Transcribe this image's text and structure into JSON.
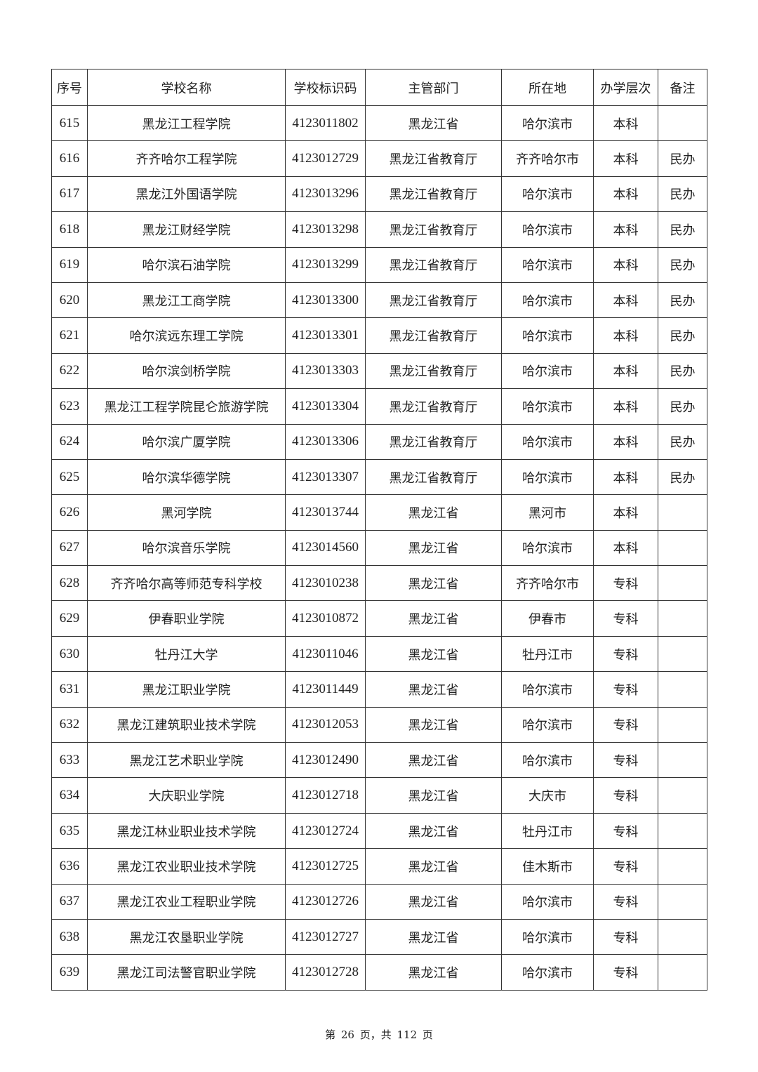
{
  "table": {
    "headers": [
      "序号",
      "学校名称",
      "学校标识码",
      "主管部门",
      "所在地",
      "办学层次",
      "备注"
    ],
    "rows": [
      [
        "615",
        "黑龙江工程学院",
        "4123011802",
        "黑龙江省",
        "哈尔滨市",
        "本科",
        ""
      ],
      [
        "616",
        "齐齐哈尔工程学院",
        "4123012729",
        "黑龙江省教育厅",
        "齐齐哈尔市",
        "本科",
        "民办"
      ],
      [
        "617",
        "黑龙江外国语学院",
        "4123013296",
        "黑龙江省教育厅",
        "哈尔滨市",
        "本科",
        "民办"
      ],
      [
        "618",
        "黑龙江财经学院",
        "4123013298",
        "黑龙江省教育厅",
        "哈尔滨市",
        "本科",
        "民办"
      ],
      [
        "619",
        "哈尔滨石油学院",
        "4123013299",
        "黑龙江省教育厅",
        "哈尔滨市",
        "本科",
        "民办"
      ],
      [
        "620",
        "黑龙江工商学院",
        "4123013300",
        "黑龙江省教育厅",
        "哈尔滨市",
        "本科",
        "民办"
      ],
      [
        "621",
        "哈尔滨远东理工学院",
        "4123013301",
        "黑龙江省教育厅",
        "哈尔滨市",
        "本科",
        "民办"
      ],
      [
        "622",
        "哈尔滨剑桥学院",
        "4123013303",
        "黑龙江省教育厅",
        "哈尔滨市",
        "本科",
        "民办"
      ],
      [
        "623",
        "黑龙江工程学院昆仑旅游学院",
        "4123013304",
        "黑龙江省教育厅",
        "哈尔滨市",
        "本科",
        "民办"
      ],
      [
        "624",
        "哈尔滨广厦学院",
        "4123013306",
        "黑龙江省教育厅",
        "哈尔滨市",
        "本科",
        "民办"
      ],
      [
        "625",
        "哈尔滨华德学院",
        "4123013307",
        "黑龙江省教育厅",
        "哈尔滨市",
        "本科",
        "民办"
      ],
      [
        "626",
        "黑河学院",
        "4123013744",
        "黑龙江省",
        "黑河市",
        "本科",
        ""
      ],
      [
        "627",
        "哈尔滨音乐学院",
        "4123014560",
        "黑龙江省",
        "哈尔滨市",
        "本科",
        ""
      ],
      [
        "628",
        "齐齐哈尔高等师范专科学校",
        "4123010238",
        "黑龙江省",
        "齐齐哈尔市",
        "专科",
        ""
      ],
      [
        "629",
        "伊春职业学院",
        "4123010872",
        "黑龙江省",
        "伊春市",
        "专科",
        ""
      ],
      [
        "630",
        "牡丹江大学",
        "4123011046",
        "黑龙江省",
        "牡丹江市",
        "专科",
        ""
      ],
      [
        "631",
        "黑龙江职业学院",
        "4123011449",
        "黑龙江省",
        "哈尔滨市",
        "专科",
        ""
      ],
      [
        "632",
        "黑龙江建筑职业技术学院",
        "4123012053",
        "黑龙江省",
        "哈尔滨市",
        "专科",
        ""
      ],
      [
        "633",
        "黑龙江艺术职业学院",
        "4123012490",
        "黑龙江省",
        "哈尔滨市",
        "专科",
        ""
      ],
      [
        "634",
        "大庆职业学院",
        "4123012718",
        "黑龙江省",
        "大庆市",
        "专科",
        ""
      ],
      [
        "635",
        "黑龙江林业职业技术学院",
        "4123012724",
        "黑龙江省",
        "牡丹江市",
        "专科",
        ""
      ],
      [
        "636",
        "黑龙江农业职业技术学院",
        "4123012725",
        "黑龙江省",
        "佳木斯市",
        "专科",
        ""
      ],
      [
        "637",
        "黑龙江农业工程职业学院",
        "4123012726",
        "黑龙江省",
        "哈尔滨市",
        "专科",
        ""
      ],
      [
        "638",
        "黑龙江农垦职业学院",
        "4123012727",
        "黑龙江省",
        "哈尔滨市",
        "专科",
        ""
      ],
      [
        "639",
        "黑龙江司法警官职业学院",
        "4123012728",
        "黑龙江省",
        "哈尔滨市",
        "专科",
        ""
      ]
    ]
  },
  "footer": {
    "page_text": "第 26 页，共 112 页"
  }
}
